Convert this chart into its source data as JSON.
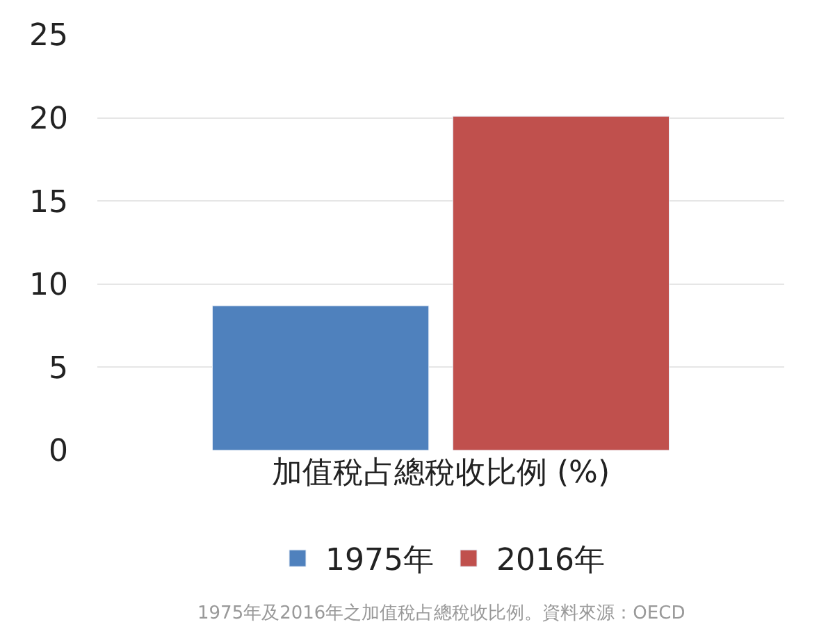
{
  "chart_data": {
    "type": "bar",
    "categories": [
      "加值稅占總稅收比例 (%)"
    ],
    "series": [
      {
        "name": "1975年",
        "color": "#4f81bd",
        "values": [
          8.7
        ]
      },
      {
        "name": "2016年",
        "color": "#c0504d",
        "values": [
          20.1
        ]
      }
    ],
    "ylim": [
      0,
      25
    ],
    "yticks": [
      0,
      5,
      10,
      15,
      20,
      25
    ],
    "grid": "y",
    "legend": "bottom",
    "annotations": [
      "1975年及2016年之加值稅占總稅收比例。資料來源：OECD"
    ]
  }
}
